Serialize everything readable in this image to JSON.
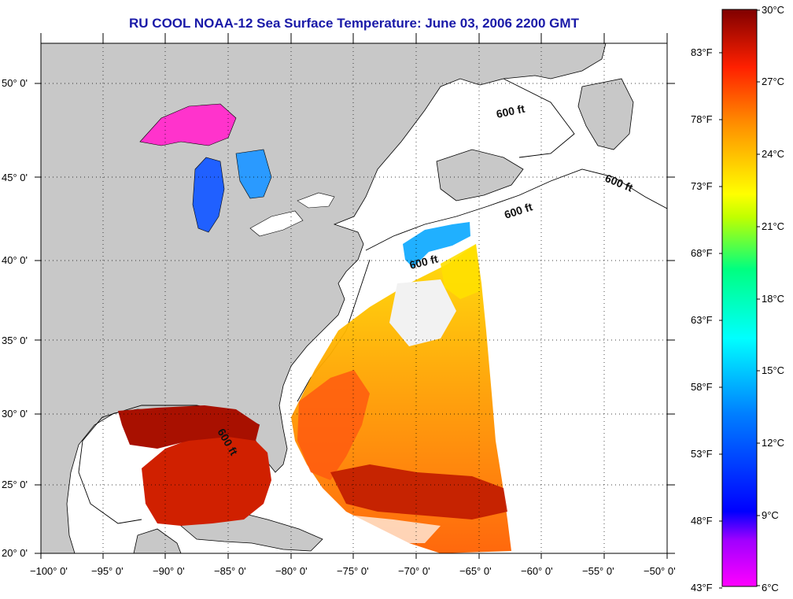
{
  "title": "RU COOL  NOAA-12  Sea Surface Temperature:  June 03, 2006 2200 GMT",
  "colors": {
    "title": "#1a1aa8",
    "land": "#c8c8c8",
    "ocean": "#ffffff",
    "frame": "#000000"
  },
  "axes": {
    "lon_labels": [
      "−100° 0'",
      "−95° 0'",
      "−90° 0'",
      "−85° 0'",
      "−80° 0'",
      "−75° 0'",
      "−70° 0'",
      "−65° 0'",
      "−60° 0'",
      "−55° 0'",
      "−50° 0'"
    ],
    "lat_labels": [
      "50° 0'",
      "45° 0'",
      "40° 0'",
      "35° 0'",
      "30° 0'",
      "25° 0'",
      "20° 0'"
    ]
  },
  "colorbar": {
    "celsius_labels": [
      "30°C",
      "27°C",
      "24°C",
      "21°C",
      "18°C",
      "15°C",
      "12°C",
      "9°C",
      "6°C"
    ],
    "fahrenheit_labels": [
      "83°F",
      "78°F",
      "73°F",
      "68°F",
      "63°F",
      "58°F",
      "53°F",
      "48°F",
      "43°F"
    ],
    "stops": [
      "#ff00ff",
      "#8000ff",
      "#0000ff",
      "#0080ff",
      "#00ffff",
      "#00ff80",
      "#00ff00",
      "#ffff00",
      "#ff8000",
      "#ff0000",
      "#800000"
    ]
  },
  "contour_labels": [
    "600 ft",
    "600 ft",
    "600 ft",
    "600 ft",
    "600 ft"
  ]
}
